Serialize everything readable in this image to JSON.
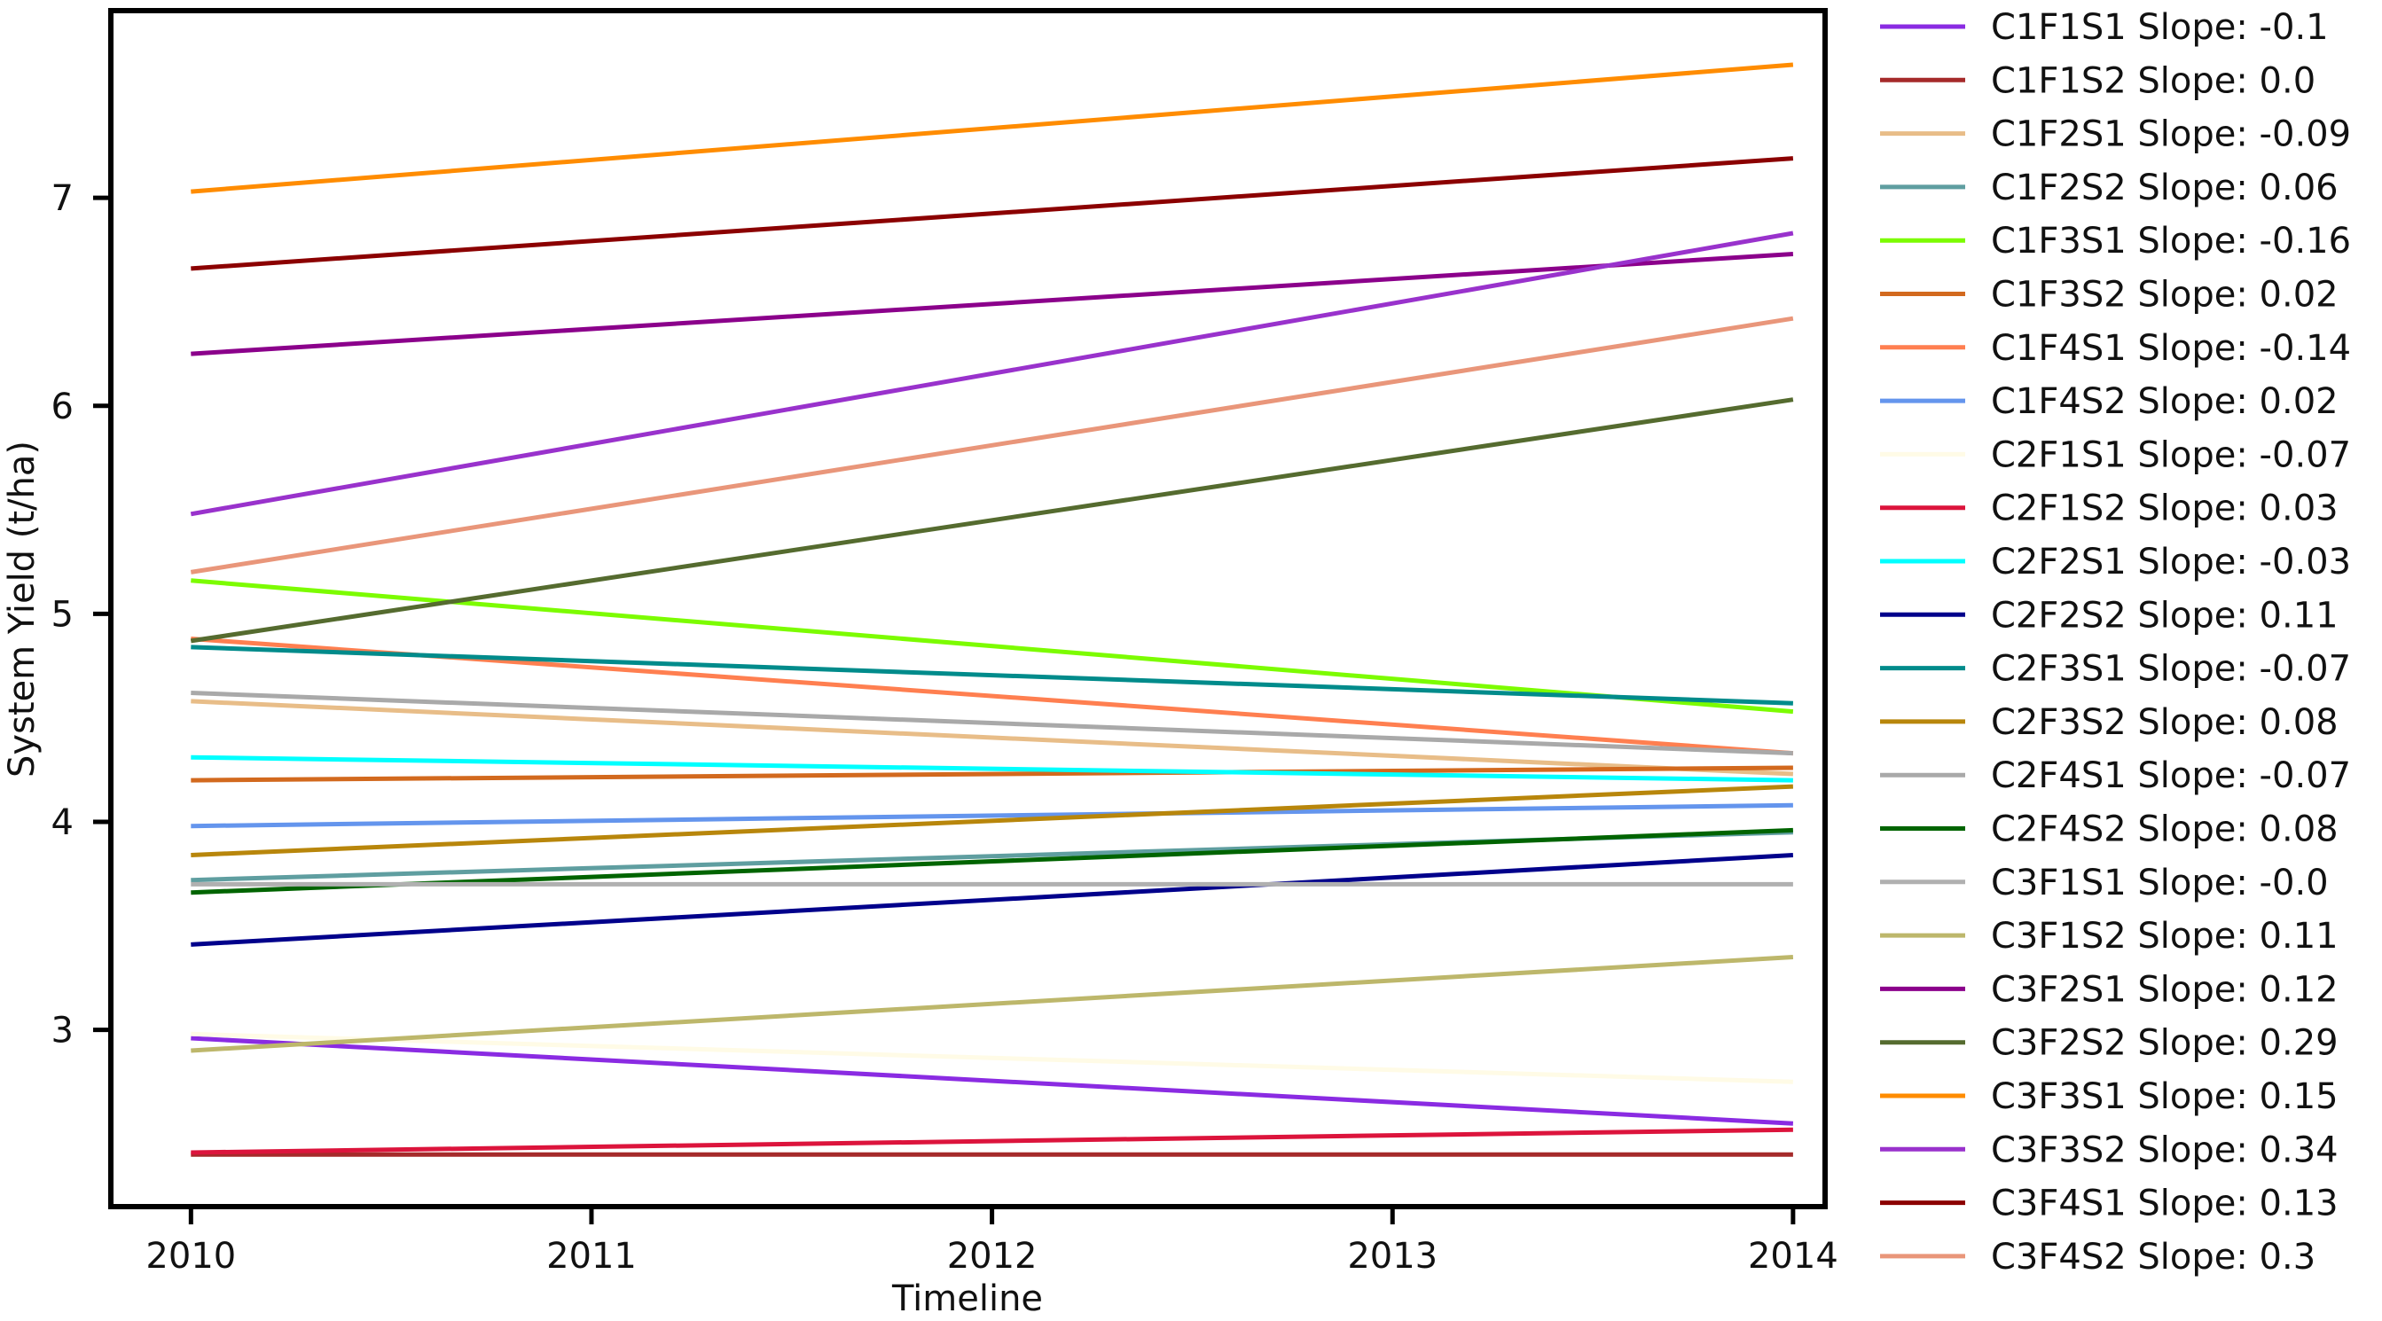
{
  "chart_data": {
    "type": "line",
    "xlabel": "Timeline",
    "ylabel": "System Yield (t/ha)",
    "x": [
      2010,
      2014
    ],
    "xticks": [
      "2010",
      "2011",
      "2012",
      "2013",
      "2014"
    ],
    "yticks": [
      "3",
      "4",
      "5",
      "6",
      "7"
    ],
    "xlim": [
      2009.8,
      2014.08
    ],
    "ylim": [
      2.15,
      7.9
    ],
    "grid": false,
    "legend_position": "right, outside plot",
    "series": [
      {
        "label": "C1F1S1 Slope: -0.1",
        "color": "#8a2be2",
        "values": [
          2.96,
          2.55
        ]
      },
      {
        "label": "C1F1S2 Slope: 0.0",
        "color": "#a52a2a",
        "values": [
          2.4,
          2.4
        ]
      },
      {
        "label": "C1F2S1 Slope: -0.09",
        "color": "#e8bd88",
        "values": [
          4.58,
          4.23
        ]
      },
      {
        "label": "C1F2S2 Slope: 0.06",
        "color": "#5f9ea0",
        "values": [
          3.72,
          3.95
        ]
      },
      {
        "label": "C1F3S1 Slope: -0.16",
        "color": "#7cfc00",
        "values": [
          5.16,
          4.53
        ]
      },
      {
        "label": "C1F3S2 Slope: 0.02",
        "color": "#d2691e",
        "values": [
          4.2,
          4.26
        ]
      },
      {
        "label": "C1F4S1 Slope: -0.14",
        "color": "#ff7f50",
        "values": [
          4.88,
          4.33
        ]
      },
      {
        "label": "C1F4S2 Slope: 0.02",
        "color": "#6495ed",
        "values": [
          3.98,
          4.08
        ]
      },
      {
        "label": "C2F1S1 Slope: -0.07",
        "color": "#fffbe6",
        "values": [
          2.98,
          2.75
        ]
      },
      {
        "label": "C2F1S2 Slope: 0.03",
        "color": "#dc143c",
        "values": [
          2.41,
          2.52
        ]
      },
      {
        "label": "C2F2S1 Slope: -0.03",
        "color": "#00ffff",
        "values": [
          4.31,
          4.2
        ]
      },
      {
        "label": "C2F2S2 Slope: 0.11",
        "color": "#00008b",
        "values": [
          3.41,
          3.84
        ]
      },
      {
        "label": "C2F3S1 Slope: -0.07",
        "color": "#008b8b",
        "values": [
          4.84,
          4.57
        ]
      },
      {
        "label": "C2F3S2 Slope: 0.08",
        "color": "#b8860b",
        "values": [
          3.84,
          4.17
        ]
      },
      {
        "label": "C2F4S1 Slope: -0.07",
        "color": "#a9a9a9",
        "values": [
          4.62,
          4.33
        ]
      },
      {
        "label": "C2F4S2 Slope: 0.08",
        "color": "#006400",
        "values": [
          3.66,
          3.96
        ]
      },
      {
        "label": "C3F1S1 Slope: -0.0",
        "color": "#b0b0b0",
        "values": [
          3.7,
          3.7
        ]
      },
      {
        "label": "C3F1S2 Slope: 0.11",
        "color": "#bdb76b",
        "values": [
          2.9,
          3.35
        ]
      },
      {
        "label": "C3F2S1 Slope: 0.12",
        "color": "#8b008b",
        "values": [
          6.25,
          6.73
        ]
      },
      {
        "label": "C3F2S2 Slope: 0.29",
        "color": "#556b2f",
        "values": [
          4.87,
          6.03
        ]
      },
      {
        "label": "C3F3S1 Slope: 0.15",
        "color": "#ff8c00",
        "values": [
          7.03,
          7.64
        ]
      },
      {
        "label": "C3F3S2 Slope: 0.34",
        "color": "#9932cc",
        "values": [
          5.48,
          6.83
        ]
      },
      {
        "label": "C3F4S1 Slope: 0.13",
        "color": "#8b0000",
        "values": [
          6.66,
          7.19
        ]
      },
      {
        "label": "C3F4S2 Slope: 0.3",
        "color": "#e9967a",
        "values": [
          5.2,
          6.42
        ]
      }
    ]
  }
}
